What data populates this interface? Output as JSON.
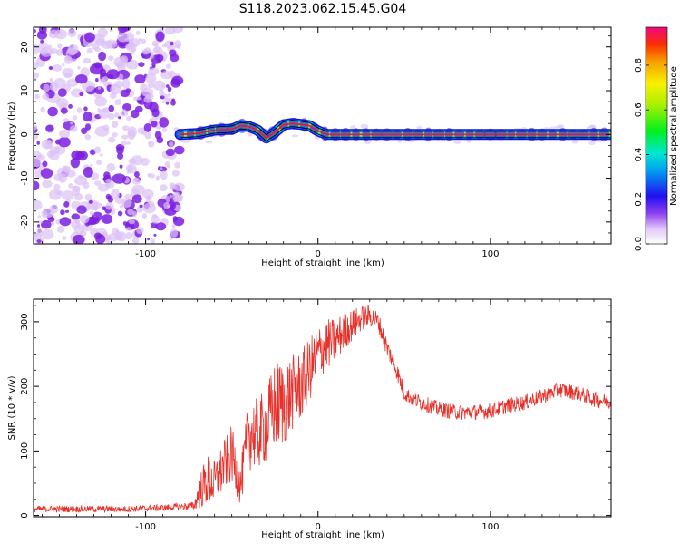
{
  "figure": {
    "title": "S118.2023.062.15.45.G04"
  },
  "chart_data": [
    {
      "type": "heatmap",
      "xlabel": "Height of straight line (km)",
      "ylabel": "Frequency (Hz)",
      "xlim": [
        -165,
        170
      ],
      "ylim": [
        -25,
        24.5
      ],
      "x_ticks": [
        -100,
        0,
        100
      ],
      "y_ticks": [
        -20,
        -10,
        0,
        10,
        20
      ],
      "noise_region_x": [
        -165,
        -80
      ],
      "signal_line": {
        "x": [
          -80,
          -70,
          -60,
          -50,
          -45,
          -40,
          -35,
          -30,
          -25,
          -20,
          -15,
          -10,
          -5,
          0,
          5,
          10,
          170
        ],
        "y": [
          0,
          0.2,
          1,
          1.2,
          2,
          1.8,
          1,
          -0.8,
          0.5,
          2.2,
          2.5,
          2.3,
          2,
          0.8,
          0,
          0,
          0
        ]
      },
      "colorbar": {
        "label": "Normalized spectral amplitude",
        "range": [
          0,
          0.97
        ],
        "ticks": [
          0.0,
          0.2,
          0.4,
          0.6,
          0.8
        ],
        "tick_labels": [
          "0.0",
          "0.2",
          "0.4",
          "0.6",
          "0.8"
        ]
      },
      "colors": {
        "noise": "#7b1fe0",
        "noise_light": "#dcc0f5",
        "signal_core": "#e8163c",
        "signal_mid": "#f0e040",
        "signal_outer": "#00c8e0",
        "signal_edge": "#1a10e0",
        "line": "#000000"
      }
    },
    {
      "type": "line",
      "xlabel": "Height of straight line (km)",
      "ylabel": "SNR (10 * v/v)",
      "xlim": [
        -165,
        170
      ],
      "ylim": [
        -2,
        335
      ],
      "x_ticks": [
        -100,
        0,
        100
      ],
      "y_ticks": [
        0,
        100,
        200,
        300
      ],
      "series": [
        {
          "color": "#e8302a",
          "x": [
            -165,
            -150,
            -130,
            -110,
            -90,
            -72,
            -68,
            -64,
            -60,
            -55,
            -50,
            -45,
            -40,
            -35,
            -30,
            -25,
            -20,
            -15,
            -10,
            -5,
            0,
            5,
            10,
            15,
            20,
            25,
            30,
            35,
            40,
            45,
            50,
            55,
            60,
            70,
            80,
            90,
            100,
            110,
            120,
            130,
            140,
            150,
            160,
            170
          ],
          "values": [
            10,
            10,
            10,
            10,
            12,
            15,
            40,
            55,
            50,
            75,
            95,
            45,
            130,
            125,
            140,
            170,
            175,
            190,
            200,
            225,
            250,
            265,
            270,
            285,
            295,
            305,
            310,
            300,
            260,
            230,
            190,
            180,
            175,
            165,
            160,
            160,
            162,
            170,
            175,
            185,
            195,
            190,
            180,
            175
          ],
          "noise_amplitude": [
            5,
            5,
            5,
            5,
            5,
            6,
            30,
            40,
            35,
            40,
            45,
            30,
            60,
            55,
            60,
            70,
            70,
            60,
            55,
            50,
            45,
            40,
            35,
            30,
            25,
            20,
            18,
            15,
            15,
            15,
            12,
            12,
            12,
            12,
            12,
            12,
            12,
            12,
            12,
            12,
            12,
            12,
            12,
            12
          ]
        }
      ]
    }
  ]
}
